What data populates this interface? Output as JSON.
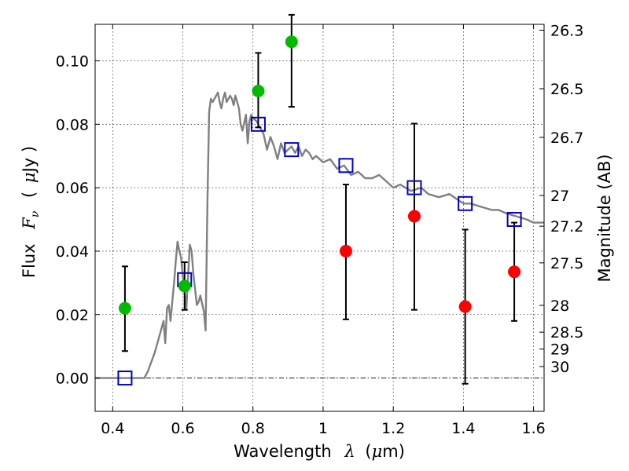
{
  "chart_data": {
    "type": "scatter",
    "xlabel": "Wavelength",
    "xlabel_symbol": "λ",
    "xlabel_unit_open": "(",
    "xlabel_unit_mu": "μ",
    "xlabel_unit_rest": "m)",
    "ylabel": "Flux",
    "ylabel_symbol": "F",
    "ylabel_symbol_sub": "ν",
    "ylabel_unit_open": "(",
    "ylabel_unit_mu": "μ",
    "ylabel_unit_rest": "Jy )",
    "y2label": "Magnitude (AB)",
    "xlim": [
      0.35,
      1.63
    ],
    "ylim": [
      -0.0105,
      0.1115
    ],
    "grid": true,
    "x_ticks": [
      {
        "value": 0.4,
        "label": "0.4"
      },
      {
        "value": 0.6,
        "label": "0.6"
      },
      {
        "value": 0.8,
        "label": "0.8"
      },
      {
        "value": 1.0,
        "label": "1"
      },
      {
        "value": 1.2,
        "label": "1.2"
      },
      {
        "value": 1.4,
        "label": "1.4"
      },
      {
        "value": 1.6,
        "label": "1.6"
      }
    ],
    "y_ticks": [
      {
        "value": 0.0,
        "label": "0.00"
      },
      {
        "value": 0.02,
        "label": "0.02"
      },
      {
        "value": 0.04,
        "label": "0.04"
      },
      {
        "value": 0.06,
        "label": "0.06"
      },
      {
        "value": 0.08,
        "label": "0.08"
      },
      {
        "value": 0.1,
        "label": "0.10"
      }
    ],
    "mag_ticks": [
      {
        "value": 26.3,
        "label": "26.3"
      },
      {
        "value": 26.5,
        "label": "26.5"
      },
      {
        "value": 26.7,
        "label": "26.7"
      },
      {
        "value": 27.0,
        "label": "27"
      },
      {
        "value": 27.2,
        "label": "27.2"
      },
      {
        "value": 27.5,
        "label": "27.5"
      },
      {
        "value": 28.0,
        "label": "28"
      },
      {
        "value": 28.5,
        "label": "28.5"
      },
      {
        "value": 29.0,
        "label": "29"
      },
      {
        "value": 30.0,
        "label": "30"
      }
    ],
    "series": [
      {
        "kind": "line",
        "color": "#808080",
        "x": [
          0.35,
          0.49,
          0.5,
          0.52,
          0.54,
          0.545,
          0.55,
          0.555,
          0.56,
          0.565,
          0.57,
          0.575,
          0.58,
          0.585,
          0.59,
          0.595,
          0.6,
          0.61,
          0.62,
          0.625,
          0.63,
          0.635,
          0.64,
          0.645,
          0.65,
          0.66,
          0.665,
          0.67,
          0.675,
          0.68,
          0.685,
          0.69,
          0.7,
          0.705,
          0.71,
          0.715,
          0.72,
          0.725,
          0.73,
          0.735,
          0.74,
          0.745,
          0.75,
          0.76,
          0.765,
          0.77,
          0.78,
          0.785,
          0.79,
          0.795,
          0.8,
          0.81,
          0.82,
          0.83,
          0.84,
          0.85,
          0.86,
          0.87,
          0.88,
          0.89,
          0.9,
          0.91,
          0.92,
          0.93,
          0.94,
          0.95,
          0.96,
          0.97,
          0.98,
          0.99,
          1.0,
          1.02,
          1.04,
          1.06,
          1.08,
          1.1,
          1.12,
          1.14,
          1.16,
          1.18,
          1.2,
          1.22,
          1.25,
          1.28,
          1.3,
          1.33,
          1.36,
          1.4,
          1.42,
          1.45,
          1.48,
          1.5,
          1.52,
          1.55,
          1.58,
          1.6,
          1.63
        ],
        "y": [
          0.0,
          0.0,
          0.002,
          0.008,
          0.016,
          0.018,
          0.011,
          0.022,
          0.023,
          0.018,
          0.024,
          0.03,
          0.037,
          0.043,
          0.04,
          0.038,
          0.032,
          0.022,
          0.042,
          0.04,
          0.033,
          0.028,
          0.023,
          0.024,
          0.026,
          0.021,
          0.015,
          0.055,
          0.084,
          0.088,
          0.087,
          0.088,
          0.09,
          0.087,
          0.085,
          0.088,
          0.09,
          0.087,
          0.088,
          0.089,
          0.088,
          0.086,
          0.089,
          0.085,
          0.08,
          0.078,
          0.083,
          0.074,
          0.081,
          0.083,
          0.082,
          0.081,
          0.079,
          0.077,
          0.072,
          0.076,
          0.073,
          0.069,
          0.074,
          0.071,
          0.072,
          0.073,
          0.071,
          0.073,
          0.07,
          0.072,
          0.071,
          0.069,
          0.07,
          0.069,
          0.068,
          0.069,
          0.066,
          0.067,
          0.064,
          0.065,
          0.063,
          0.063,
          0.064,
          0.062,
          0.06,
          0.061,
          0.059,
          0.06,
          0.058,
          0.057,
          0.058,
          0.055,
          0.055,
          0.054,
          0.053,
          0.053,
          0.052,
          0.051,
          0.05,
          0.049,
          0.049
        ]
      },
      {
        "kind": "square",
        "color": "#0000cc",
        "x": [
          0.435,
          0.605,
          0.815,
          0.91,
          1.065,
          1.26,
          1.405,
          1.545
        ],
        "y": [
          0.0,
          0.031,
          0.08,
          0.072,
          0.067,
          0.06,
          0.055,
          0.05
        ]
      },
      {
        "kind": "circle",
        "color": "#00bb00",
        "x": [
          0.435,
          0.605,
          0.815,
          0.91
        ],
        "y": [
          0.022,
          0.029,
          0.0905,
          0.106
        ]
      },
      {
        "kind": "circle",
        "color": "#ff0000",
        "x": [
          1.065,
          1.26,
          1.405,
          1.545
        ],
        "y": [
          0.04,
          0.051,
          0.0225,
          0.0335
        ]
      }
    ],
    "error_bars": [
      {
        "x": 0.435,
        "low": 0.0085,
        "high": 0.0352
      },
      {
        "x": 0.605,
        "low": 0.0215,
        "high": 0.0365
      },
      {
        "x": 0.815,
        "low": 0.079,
        "high": 0.1025
      },
      {
        "x": 0.91,
        "low": 0.0855,
        "high": 0.1145
      },
      {
        "x": 1.065,
        "low": 0.0185,
        "high": 0.061
      },
      {
        "x": 1.26,
        "low": 0.0215,
        "high": 0.0802
      },
      {
        "x": 1.405,
        "low": -0.0018,
        "high": 0.0468
      },
      {
        "x": 1.545,
        "low": 0.018,
        "high": 0.049
      }
    ]
  }
}
